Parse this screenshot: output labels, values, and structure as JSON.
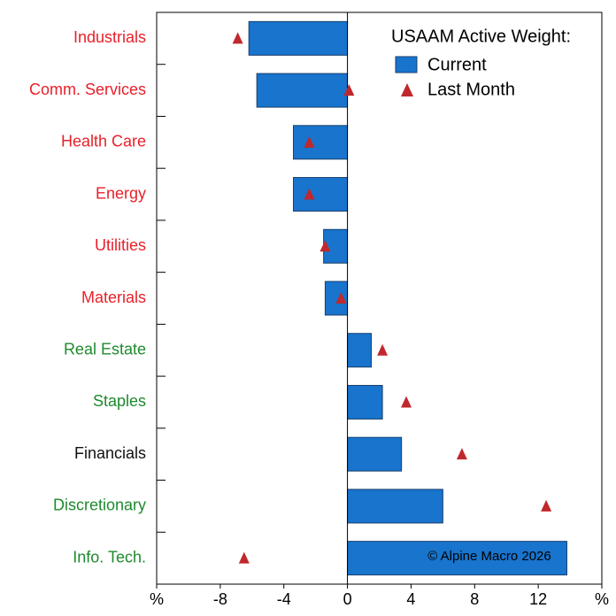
{
  "chart_data": {
    "type": "hbar_marker",
    "legend_title": "USAAM Active Weight:",
    "annotation": "© Alpine Macro 2026",
    "categories": [
      "Industrials",
      "Comm. Services",
      "Health Care",
      "Energy",
      "Utilities",
      "Materials",
      "Real Estate",
      "Staples",
      "Financials",
      "Discretionary",
      "Info. Tech."
    ],
    "category_colors": [
      "#e8202a",
      "#e8202a",
      "#e8202a",
      "#e8202a",
      "#e8202a",
      "#e8202a",
      "#1e8a2e",
      "#1e8a2e",
      "#111111",
      "#1e8a2e",
      "#1e8a2e"
    ],
    "series": [
      {
        "name": "Current",
        "color": "#1874cd",
        "values": [
          -6.2,
          -5.7,
          -3.4,
          -3.4,
          -1.5,
          -1.4,
          1.5,
          2.2,
          3.4,
          6.0,
          13.8
        ]
      },
      {
        "name": "Last Month",
        "color": "#c0282d",
        "values": [
          -6.9,
          0.1,
          -2.4,
          -2.4,
          -1.4,
          -0.4,
          2.2,
          3.7,
          7.2,
          12.5,
          -6.5
        ]
      }
    ],
    "xlim": [
      -12,
      16
    ],
    "xticks": [
      {
        "value": -12,
        "label": "%"
      },
      -8,
      -4,
      0,
      4,
      8,
      12,
      {
        "value": 16,
        "label": "%"
      }
    ]
  }
}
